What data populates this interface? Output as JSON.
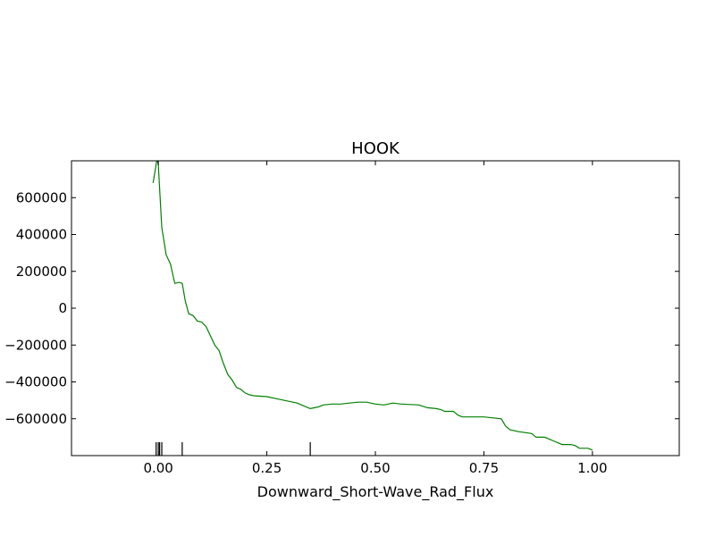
{
  "chart_data": {
    "type": "line",
    "title": "HOOK",
    "xlabel": "Downward_Short-Wave_Rad_Flux",
    "ylabel": "",
    "xlim": [
      -0.2,
      1.2
    ],
    "ylim": [
      -800000,
      800000
    ],
    "xticks": [
      0.0,
      0.25,
      0.5,
      0.75,
      1.0
    ],
    "xtick_labels": [
      "0.00",
      "0.25",
      "0.50",
      "0.75",
      "1.00"
    ],
    "yticks": [
      600000,
      400000,
      200000,
      0,
      -200000,
      -400000,
      -600000
    ],
    "ytick_labels": [
      "600000",
      "400000",
      "200000",
      "0",
      "−200000",
      "−400000",
      "−600000"
    ],
    "grid": false,
    "line_color": "#008000",
    "series": [
      {
        "x": [
          -0.012,
          -0.003,
          0.0,
          0.008,
          0.018,
          0.028,
          0.038,
          0.048,
          0.055,
          0.062,
          0.07,
          0.08,
          0.09,
          0.1,
          0.11,
          0.12,
          0.13,
          0.14,
          0.15,
          0.16,
          0.17,
          0.18,
          0.19,
          0.2,
          0.21,
          0.22,
          0.25,
          0.27,
          0.3,
          0.32,
          0.33,
          0.35,
          0.36,
          0.37,
          0.38,
          0.4,
          0.42,
          0.44,
          0.46,
          0.48,
          0.5,
          0.52,
          0.54,
          0.56,
          0.6,
          0.62,
          0.64,
          0.65,
          0.66,
          0.68,
          0.69,
          0.7,
          0.72,
          0.75,
          0.79,
          0.8,
          0.81,
          0.83,
          0.86,
          0.87,
          0.89,
          0.9,
          0.91,
          0.93,
          0.95,
          0.96,
          0.97,
          0.99,
          1.0
        ],
        "y": [
          680000,
          810000,
          780000,
          440000,
          290000,
          240000,
          135000,
          140000,
          135000,
          40000,
          -30000,
          -40000,
          -70000,
          -75000,
          -100000,
          -150000,
          -200000,
          -230000,
          -300000,
          -360000,
          -390000,
          -430000,
          -440000,
          -460000,
          -470000,
          -475000,
          -480000,
          -490000,
          -505000,
          -515000,
          -525000,
          -545000,
          -540000,
          -535000,
          -525000,
          -520000,
          -520000,
          -515000,
          -510000,
          -510000,
          -520000,
          -525000,
          -515000,
          -520000,
          -525000,
          -540000,
          -545000,
          -550000,
          -560000,
          -560000,
          -580000,
          -590000,
          -590000,
          -590000,
          -600000,
          -640000,
          -660000,
          -670000,
          -680000,
          -700000,
          -700000,
          -710000,
          -720000,
          -740000,
          -740000,
          -745000,
          -760000,
          -760000,
          -770000
        ]
      }
    ],
    "rug_x": [
      -0.005,
      0.0,
      0.003,
      0.008,
      0.055,
      0.35
    ]
  }
}
